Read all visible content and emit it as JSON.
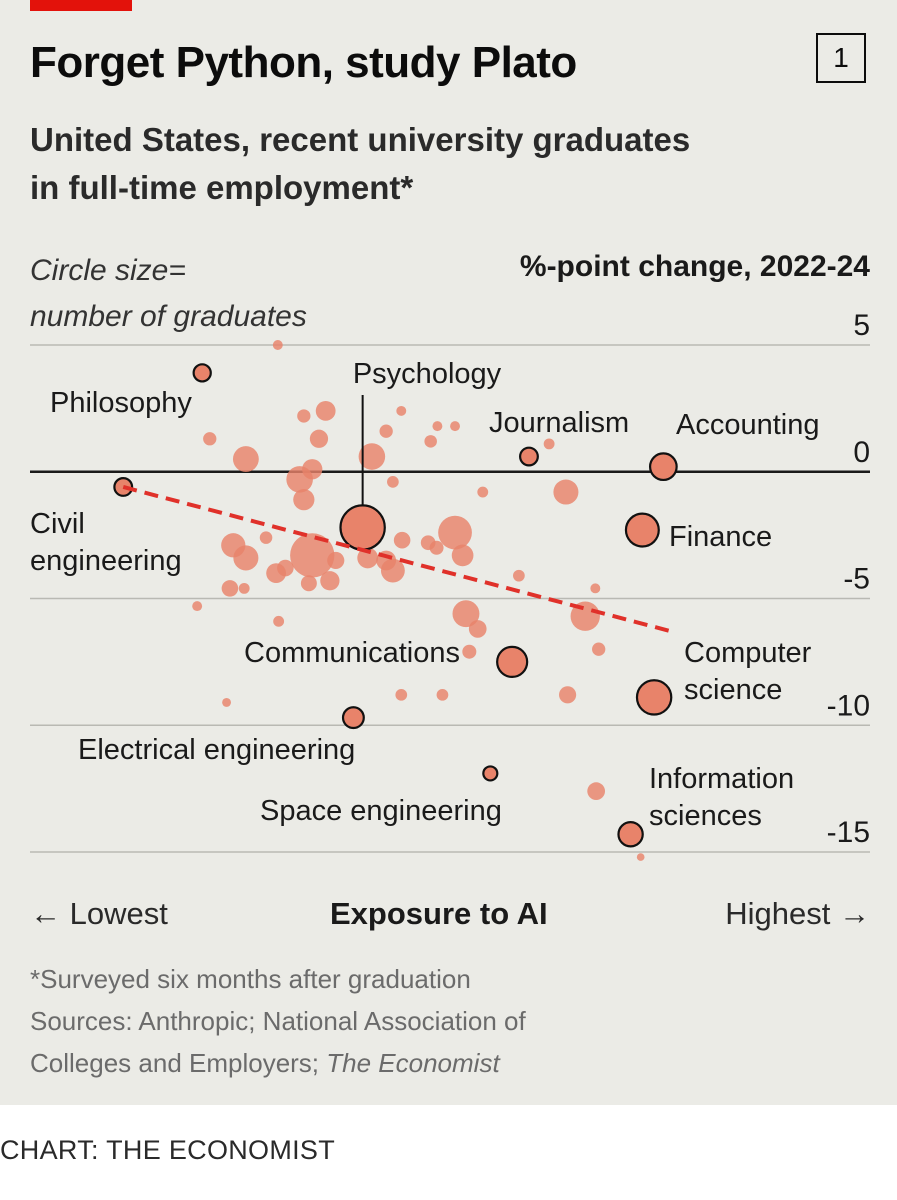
{
  "header": {
    "title": "Forget Python, study Plato",
    "chart_number": "1",
    "subtitle_line1": "United States, recent university graduates",
    "subtitle_line2": "in full-time employment*"
  },
  "legend": {
    "size_line1": "Circle size=",
    "size_line2": "number of graduates"
  },
  "footer": {
    "note": "*Surveyed six months after graduation",
    "sources_line1": "Sources: Anthropic; National Association of",
    "sources_line2_prefix": "Colleges and Employers; ",
    "sources_line2_italic": "The Economist",
    "credit": "CHART: THE ECONOMIST"
  },
  "colors": {
    "bubble_fill": "#e8836a",
    "trend_line": "#e0312a",
    "background": "#ebebe6",
    "brand_red": "#e3120b"
  },
  "chart_data": {
    "type": "scatter",
    "title": "Forget Python, study Plato",
    "subtitle": "United States, recent university graduates in full-time employment*",
    "ylabel": "%-point change, 2022-24",
    "xlabel": "Exposure to AI",
    "x_low_label": "← Lowest",
    "x_high_label": "Highest →",
    "size_legend": "Circle size= number of graduates",
    "x_range": [
      0,
      100
    ],
    "ylim": [
      -15,
      5
    ],
    "yticks": [
      {
        "value": 5,
        "label": "5"
      },
      {
        "value": 0,
        "label": "0"
      },
      {
        "value": -5,
        "label": "-5"
      },
      {
        "value": -10,
        "label": "-10"
      },
      {
        "value": -15,
        "label": "-15"
      }
    ],
    "grid": true,
    "trend": {
      "x1": 11.1,
      "y1": -0.6,
      "x2": 76.4,
      "y2": -6.3
    },
    "labeled": [
      {
        "name": "Philosophy",
        "label_lines": [
          "Philosophy"
        ],
        "x": 20.5,
        "y": 3.9,
        "size": 1.5
      },
      {
        "name": "Psychology",
        "label_lines": [
          "Psychology"
        ],
        "x": 39.6,
        "y": -2.2,
        "size": 10,
        "leader": true
      },
      {
        "name": "Journalism",
        "label_lines": [
          "Journalism"
        ],
        "x": 59.4,
        "y": 0.6,
        "size": 1.6
      },
      {
        "name": "Accounting",
        "label_lines": [
          "Accounting"
        ],
        "x": 75.4,
        "y": 0.2,
        "size": 3.6
      },
      {
        "name": "Civil engineering",
        "label_lines": [
          "Civil",
          "engineering"
        ],
        "x": 11.1,
        "y": -0.6,
        "size": 1.6
      },
      {
        "name": "Finance",
        "label_lines": [
          "Finance"
        ],
        "x": 72.9,
        "y": -2.3,
        "size": 5.5
      },
      {
        "name": "Communications",
        "label_lines": [
          "Communications"
        ],
        "x": 57.4,
        "y": -7.5,
        "size": 4.6
      },
      {
        "name": "Computer science",
        "label_lines": [
          "Computer",
          "science"
        ],
        "x": 74.3,
        "y": -8.9,
        "size": 6
      },
      {
        "name": "Electrical engineering",
        "label_lines": [
          "Electrical engineering"
        ],
        "x": 38.5,
        "y": -9.7,
        "size": 2.2
      },
      {
        "name": "Space engineering",
        "label_lines": [
          "Space engineering"
        ],
        "x": 54.8,
        "y": -11.9,
        "size": 1
      },
      {
        "name": "Information sciences",
        "label_lines": [
          "Information",
          "sciences"
        ],
        "x": 71.5,
        "y": -14.3,
        "size": 3
      }
    ],
    "points": [
      {
        "x": 29.5,
        "y": 5.0,
        "size": 0.5
      },
      {
        "x": 21.4,
        "y": 1.3,
        "size": 0.9
      },
      {
        "x": 25.7,
        "y": 0.5,
        "size": 3.4
      },
      {
        "x": 32.6,
        "y": 2.2,
        "size": 0.9
      },
      {
        "x": 35.2,
        "y": 2.4,
        "size": 2
      },
      {
        "x": 34.4,
        "y": 1.3,
        "size": 1.7
      },
      {
        "x": 33.6,
        "y": 0.1,
        "size": 2.1
      },
      {
        "x": 32.1,
        "y": -0.3,
        "size": 3.6
      },
      {
        "x": 32.6,
        "y": -1.1,
        "size": 2.3
      },
      {
        "x": 40.7,
        "y": 0.6,
        "size": 3.6
      },
      {
        "x": 43.2,
        "y": -0.4,
        "size": 0.7
      },
      {
        "x": 42.4,
        "y": 1.6,
        "size": 0.9
      },
      {
        "x": 44.2,
        "y": 2.4,
        "size": 0.5
      },
      {
        "x": 47.7,
        "y": 1.2,
        "size": 0.8
      },
      {
        "x": 48.5,
        "y": 1.8,
        "size": 0.5
      },
      {
        "x": 50.6,
        "y": 1.8,
        "size": 0.5
      },
      {
        "x": 61.8,
        "y": 1.1,
        "size": 0.6
      },
      {
        "x": 63.8,
        "y": -0.8,
        "size": 3.2
      },
      {
        "x": 53.9,
        "y": -0.8,
        "size": 0.6
      },
      {
        "x": 24.2,
        "y": -2.9,
        "size": 3
      },
      {
        "x": 25.7,
        "y": -3.4,
        "size": 3.2
      },
      {
        "x": 28.1,
        "y": -2.6,
        "size": 0.8
      },
      {
        "x": 29.3,
        "y": -4.0,
        "size": 2
      },
      {
        "x": 30.4,
        "y": -3.8,
        "size": 1.4
      },
      {
        "x": 33.6,
        "y": -3.3,
        "size": 10
      },
      {
        "x": 35.7,
        "y": -4.3,
        "size": 1.9
      },
      {
        "x": 40.2,
        "y": -3.4,
        "size": 2.2
      },
      {
        "x": 42.4,
        "y": -3.5,
        "size": 2
      },
      {
        "x": 43.2,
        "y": -3.9,
        "size": 2.9
      },
      {
        "x": 44.3,
        "y": -2.7,
        "size": 1.4
      },
      {
        "x": 47.4,
        "y": -2.8,
        "size": 1.1
      },
      {
        "x": 50.6,
        "y": -2.4,
        "size": 5.8
      },
      {
        "x": 51.5,
        "y": -3.3,
        "size": 2.4
      },
      {
        "x": 48.4,
        "y": -3.0,
        "size": 1
      },
      {
        "x": 58.2,
        "y": -4.1,
        "size": 0.7
      },
      {
        "x": 19.9,
        "y": -5.3,
        "size": 0.5
      },
      {
        "x": 23.8,
        "y": -4.6,
        "size": 1.4
      },
      {
        "x": 25.5,
        "y": -4.6,
        "size": 0.6
      },
      {
        "x": 29.6,
        "y": -5.9,
        "size": 0.6
      },
      {
        "x": 33.2,
        "y": -4.4,
        "size": 1.3
      },
      {
        "x": 36.4,
        "y": -3.5,
        "size": 1.5
      },
      {
        "x": 51.9,
        "y": -5.6,
        "size": 3.7
      },
      {
        "x": 53.3,
        "y": -6.2,
        "size": 1.6
      },
      {
        "x": 52.3,
        "y": -7.1,
        "size": 1
      },
      {
        "x": 66.1,
        "y": -5.7,
        "size": 4.4
      },
      {
        "x": 67.3,
        "y": -4.6,
        "size": 0.5
      },
      {
        "x": 67.7,
        "y": -7.0,
        "size": 0.9
      },
      {
        "x": 23.4,
        "y": -9.1,
        "size": 0.4
      },
      {
        "x": 44.2,
        "y": -8.8,
        "size": 0.7
      },
      {
        "x": 49.1,
        "y": -8.8,
        "size": 0.7
      },
      {
        "x": 64.0,
        "y": -8.8,
        "size": 1.5
      },
      {
        "x": 67.4,
        "y": -12.6,
        "size": 1.6
      },
      {
        "x": 72.7,
        "y": -15.2,
        "size": 0.3
      }
    ]
  }
}
